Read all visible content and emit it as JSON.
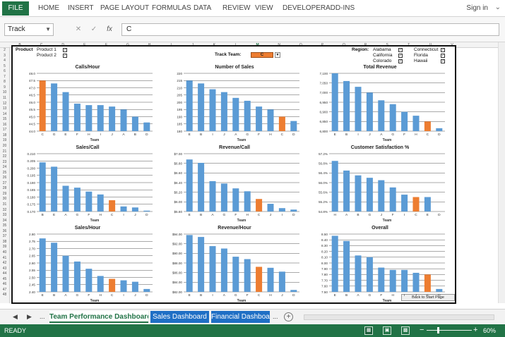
{
  "ribbon": {
    "file_label": "FILE",
    "tabs": [
      "HOME",
      "INSERT",
      "PAGE LAYOUT",
      "FORMULAS",
      "DATA",
      "REVIEW",
      "VIEW",
      "DEVELOPER",
      "ADD-INS"
    ],
    "signin": "Sign in"
  },
  "formula_bar": {
    "name_box": "Track",
    "cancel_icon": "cancel-icon",
    "enter_icon": "checkmark-icon",
    "fx_label": "fx",
    "content": "C"
  },
  "columns": [
    "B",
    "C",
    "D",
    "E",
    "F",
    "G",
    "H",
    "I",
    "J",
    "K",
    "L",
    "M",
    "N",
    "O",
    "P",
    "Q",
    "R",
    "S",
    "T",
    "U",
    "V"
  ],
  "selected_column": "M",
  "rows": [
    "2",
    "3",
    "4",
    "5",
    "6",
    "7",
    "8",
    "9",
    "10",
    "11",
    "12",
    "13",
    "14",
    "15",
    "16",
    "17",
    "18",
    "19",
    "20",
    "21",
    "22",
    "23",
    "24",
    "25",
    "26",
    "27",
    "28",
    "29",
    "30",
    "31",
    "32",
    "33",
    "34",
    "35",
    "36",
    "37",
    "38",
    "39",
    "40",
    "41",
    "42",
    "43",
    "44",
    "45",
    "46",
    "47",
    "48"
  ],
  "filters": {
    "product_label": "Product",
    "products": [
      {
        "name": "Product 1",
        "checked": true
      },
      {
        "name": "Product 2",
        "checked": true
      }
    ],
    "track_team_label": "Track Team:",
    "track_team_value": "C",
    "region_label": "Region:",
    "regions": [
      {
        "name": "Alabama",
        "checked": true
      },
      {
        "name": "California",
        "checked": true
      },
      {
        "name": "Colorado",
        "checked": true
      },
      {
        "name": "Connecticut",
        "checked": true
      },
      {
        "name": "Florida",
        "checked": true
      },
      {
        "name": "Hawaii",
        "checked": true
      }
    ]
  },
  "colors": {
    "bar": "#5b9bd5",
    "highlight": "#ed7d31",
    "excel_green": "#217346"
  },
  "chart_data": [
    {
      "type": "bar",
      "title": "Calls/Hour",
      "xlabel": "Team",
      "categories": [
        "C",
        "G",
        "E",
        "F",
        "H",
        "I",
        "J",
        "A",
        "B",
        "D"
      ],
      "values": [
        47.5,
        47.3,
        46.7,
        45.9,
        45.8,
        45.8,
        45.7,
        45.5,
        45.0,
        44.6
      ],
      "ylim": [
        44.0,
        48.0
      ],
      "yticks": [
        "44.0",
        "44.5",
        "45.0",
        "45.5",
        "46.0",
        "46.5",
        "47.0",
        "47.5",
        "48.0"
      ],
      "highlight": "C"
    },
    {
      "type": "bar",
      "title": "Number of Sales",
      "xlabel": "Team",
      "categories": [
        "E",
        "B",
        "I",
        "J",
        "A",
        "G",
        "F",
        "H",
        "C",
        "D"
      ],
      "values": [
        215,
        213,
        209,
        207,
        203,
        201,
        197,
        195,
        190,
        187
      ],
      "ylim": [
        180,
        220
      ],
      "yticks": [
        "180",
        "185",
        "190",
        "195",
        "200",
        "205",
        "210",
        "215",
        "220"
      ],
      "highlight": "C"
    },
    {
      "type": "bar",
      "title": "Total Revenue",
      "xlabel": "Team",
      "categories": [
        "E",
        "B",
        "I",
        "J",
        "A",
        "G",
        "F",
        "H",
        "C",
        "D"
      ],
      "values": [
        7100,
        7060,
        7030,
        7000,
        6960,
        6940,
        6900,
        6880,
        6850,
        6815
      ],
      "ylim": [
        6800,
        7100
      ],
      "yticks": [
        "6,800",
        "6,850",
        "6,900",
        "6,950",
        "7,000",
        "7,050",
        "7,100"
      ],
      "highlight": "C"
    },
    {
      "type": "bar",
      "title": "Sales/Call",
      "xlabel": "Team",
      "categories": [
        "B",
        "E",
        "A",
        "G",
        "F",
        "H",
        "C",
        "I",
        "J",
        "D"
      ],
      "values": [
        0.204,
        0.201,
        0.1878,
        0.1865,
        0.1838,
        0.1818,
        0.1778,
        0.1735,
        0.1728,
        0.1706
      ],
      "ylim": [
        0.17,
        0.21
      ],
      "yticks": [
        "0.170",
        "0.175",
        "0.180",
        "0.185",
        "0.190",
        "0.195",
        "0.200",
        "0.205",
        "0.210"
      ],
      "highlight": "C"
    },
    {
      "type": "bar",
      "title": "Revenue/Call",
      "xlabel": "Team",
      "categories": [
        "E",
        "B",
        "A",
        "G",
        "F",
        "H",
        "C",
        "J",
        "I",
        "D"
      ],
      "values": [
        6.88,
        6.81,
        6.43,
        6.38,
        6.28,
        6.22,
        6.06,
        5.96,
        5.87,
        5.84
      ],
      "ylim": [
        5.8,
        7.0
      ],
      "yticks": [
        "$5.80",
        "$6.00",
        "$6.20",
        "$6.40",
        "$6.60",
        "$6.80",
        "$7.00"
      ],
      "highlight": "C"
    },
    {
      "type": "bar",
      "title": "Customer Satisfaction %",
      "xlabel": "Team",
      "categories": [
        "H",
        "A",
        "B",
        "G",
        "J",
        "F",
        "I",
        "C",
        "E",
        "D"
      ],
      "values": [
        56.9,
        56.5,
        56.3,
        56.2,
        56.1,
        55.8,
        55.5,
        55.4,
        55.4,
        54.7
      ],
      "ylim": [
        54.8,
        57.2
      ],
      "yticks": [
        "54.8%",
        "55.2%",
        "55.6%",
        "56.0%",
        "56.4%",
        "56.8%",
        "57.2%"
      ],
      "highlight": "C"
    },
    {
      "type": "bar",
      "title": "Sales/Hour",
      "xlabel": "Team",
      "categories": [
        "E",
        "B",
        "A",
        "G",
        "F",
        "H",
        "C",
        "I",
        "J",
        "D"
      ],
      "values": [
        2.77,
        2.74,
        2.65,
        2.61,
        2.56,
        2.51,
        2.49,
        2.48,
        2.47,
        2.42
      ],
      "ylim": [
        2.4,
        2.8
      ],
      "yticks": [
        "2.40",
        "2.45",
        "2.50",
        "2.55",
        "2.60",
        "2.65",
        "2.70",
        "2.75",
        "2.80"
      ],
      "highlight": "C"
    },
    {
      "type": "bar",
      "title": "Revenue/Hour",
      "xlabel": "Team",
      "categories": [
        "E",
        "B",
        "I",
        "A",
        "G",
        "F",
        "C",
        "H",
        "J",
        "D"
      ],
      "values": [
        93.8,
        93.4,
        91.5,
        91.0,
        89.3,
        88.8,
        87.2,
        87.0,
        86.2,
        82.4
      ],
      "ylim": [
        82.0,
        94.0
      ],
      "yticks": [
        "$82.00",
        "$84.00",
        "$86.00",
        "$88.00",
        "$90.00",
        "$92.00",
        "$94.00"
      ],
      "highlight": "C"
    },
    {
      "type": "bar",
      "title": "Overall",
      "xlabel": "Team",
      "categories": [
        "E",
        "B",
        "A",
        "G",
        "F",
        "H",
        "I",
        "J",
        "C",
        "D"
      ],
      "values": [
        8.47,
        8.38,
        8.13,
        8.1,
        7.92,
        7.88,
        7.88,
        7.83,
        7.8,
        7.55
      ],
      "ylim": [
        7.5,
        8.5
      ],
      "yticks": [
        "7.50",
        "7.60",
        "7.70",
        "7.80",
        "7.90",
        "8.00",
        "8.10",
        "8.20",
        "8.30",
        "8.40",
        "8.50"
      ],
      "highlight": "C"
    }
  ],
  "back_button": "Back to Start Page",
  "sheet_tabs": {
    "ellipsis": "...",
    "tabs": [
      {
        "label": "Team Performance Dashboard",
        "state": "active"
      },
      {
        "label": "Sales Dashboard",
        "state": "blue"
      },
      {
        "label": "Financial Dashboard",
        "state": "blue"
      }
    ],
    "more": "...",
    "add": "+"
  },
  "status_bar": {
    "ready": "READY",
    "zoom_minus": "−",
    "zoom_plus": "+",
    "zoom": "60%",
    "zoom_level": 0.23
  }
}
